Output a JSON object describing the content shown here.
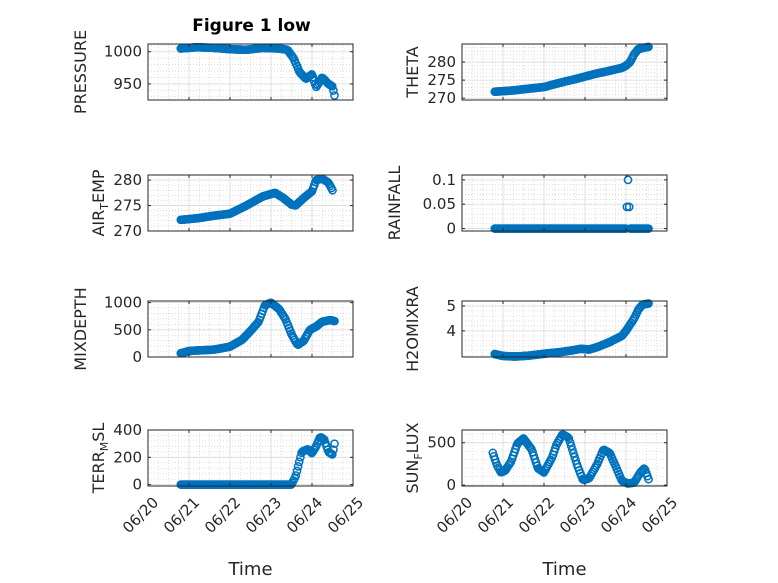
{
  "figure": {
    "title": "Figure 1 low",
    "xlabel": "Time",
    "xticks": [
      "06/20",
      "06/21",
      "06/22",
      "06/23",
      "06/24",
      "06/25"
    ],
    "marker_color": "#0072BD",
    "grid": true,
    "minor_grid": true
  },
  "chart_data": [
    {
      "type": "scatter",
      "ylabel_main": "PRESSURE",
      "ylabel_sub": "",
      "ylim": [
        925,
        1012
      ],
      "yticks": [
        950,
        1000
      ],
      "keyframes": [
        [
          0.8,
          1005
        ],
        [
          1.2,
          1007
        ],
        [
          1.6,
          1006
        ],
        [
          2.0,
          1004
        ],
        [
          2.4,
          1003
        ],
        [
          2.8,
          1006
        ],
        [
          3.2,
          1005
        ],
        [
          3.4,
          1003
        ],
        [
          3.55,
          990
        ],
        [
          3.7,
          968
        ],
        [
          3.85,
          958
        ],
        [
          4.0,
          965
        ],
        [
          4.1,
          945
        ],
        [
          4.25,
          960
        ],
        [
          4.4,
          950
        ],
        [
          4.5,
          946
        ],
        [
          4.55,
          932
        ]
      ]
    },
    {
      "type": "scatter",
      "ylabel_main": "THETA",
      "ylabel_sub": "",
      "ylim": [
        269.5,
        285
      ],
      "yticks": [
        270,
        275,
        280
      ],
      "keyframes": [
        [
          0.8,
          271.8
        ],
        [
          1.2,
          272.1
        ],
        [
          1.6,
          272.6
        ],
        [
          2.0,
          273.1
        ],
        [
          2.4,
          274.3
        ],
        [
          2.8,
          275.4
        ],
        [
          3.2,
          276.6
        ],
        [
          3.6,
          277.6
        ],
        [
          3.9,
          278.4
        ],
        [
          4.0,
          279.0
        ],
        [
          4.1,
          280.0
        ],
        [
          4.2,
          282.2
        ],
        [
          4.3,
          283.6
        ],
        [
          4.45,
          284.0
        ],
        [
          4.55,
          284.2
        ]
      ]
    },
    {
      "type": "scatter",
      "ylabel_main": "AIR",
      "ylabel_sub": "T",
      "ylabel_rest": "EMP",
      "ylim": [
        270,
        281
      ],
      "yticks": [
        270,
        275,
        280
      ],
      "keyframes": [
        [
          0.8,
          272.2
        ],
        [
          1.2,
          272.5
        ],
        [
          1.6,
          273.0
        ],
        [
          2.0,
          273.4
        ],
        [
          2.4,
          275.0
        ],
        [
          2.8,
          276.8
        ],
        [
          3.1,
          277.5
        ],
        [
          3.3,
          276.5
        ],
        [
          3.5,
          275.2
        ],
        [
          3.6,
          275.0
        ],
        [
          3.8,
          276.5
        ],
        [
          4.0,
          277.8
        ],
        [
          4.1,
          280.0
        ],
        [
          4.25,
          280.3
        ],
        [
          4.4,
          279.5
        ],
        [
          4.5,
          278.0
        ]
      ]
    },
    {
      "type": "scatter",
      "ylabel_main": "RAINFALL",
      "ylabel_sub": "",
      "ylim": [
        -0.005,
        0.11
      ],
      "yticks": [
        0,
        0.05,
        0.1
      ],
      "keyframes": [
        [
          0.8,
          0
        ],
        [
          4.0,
          0
        ],
        [
          4.05,
          0.1
        ],
        [
          4.1,
          0
        ],
        [
          4.55,
          0
        ]
      ]
    },
    {
      "type": "scatter",
      "ylabel_main": "MIXDEPTH",
      "ylabel_sub": "",
      "ylim": [
        0,
        1030
      ],
      "yticks": [
        0,
        500,
        1000
      ],
      "keyframes": [
        [
          0.8,
          70
        ],
        [
          1.0,
          110
        ],
        [
          1.2,
          120
        ],
        [
          1.6,
          135
        ],
        [
          2.0,
          190
        ],
        [
          2.3,
          320
        ],
        [
          2.5,
          480
        ],
        [
          2.7,
          650
        ],
        [
          2.85,
          950
        ],
        [
          3.0,
          1000
        ],
        [
          3.2,
          880
        ],
        [
          3.35,
          700
        ],
        [
          3.5,
          420
        ],
        [
          3.65,
          220
        ],
        [
          3.8,
          300
        ],
        [
          3.95,
          500
        ],
        [
          4.1,
          560
        ],
        [
          4.25,
          650
        ],
        [
          4.45,
          680
        ],
        [
          4.55,
          660
        ]
      ]
    },
    {
      "type": "scatter",
      "ylabel_main": "H2OMIXRA",
      "ylabel_sub": "",
      "ylim": [
        2.95,
        5.2
      ],
      "yticks": [
        4,
        5
      ],
      "keyframes": [
        [
          0.8,
          3.07
        ],
        [
          1.0,
          2.99
        ],
        [
          1.3,
          2.97
        ],
        [
          1.6,
          3.0
        ],
        [
          2.0,
          3.08
        ],
        [
          2.4,
          3.15
        ],
        [
          2.7,
          3.22
        ],
        [
          2.9,
          3.28
        ],
        [
          3.1,
          3.25
        ],
        [
          3.3,
          3.35
        ],
        [
          3.6,
          3.55
        ],
        [
          3.9,
          3.8
        ],
        [
          4.0,
          4.0
        ],
        [
          4.2,
          4.5
        ],
        [
          4.3,
          4.85
        ],
        [
          4.4,
          5.05
        ],
        [
          4.55,
          5.1
        ]
      ]
    },
    {
      "type": "scatter",
      "ylabel_main": "TERR",
      "ylabel_sub": "M",
      "ylabel_rest": "SL",
      "ylim": [
        -10,
        400
      ],
      "yticks": [
        0,
        200,
        400
      ],
      "keyframes": [
        [
          0.8,
          0
        ],
        [
          3.5,
          0
        ],
        [
          3.6,
          60
        ],
        [
          3.75,
          240
        ],
        [
          3.9,
          260
        ],
        [
          4.0,
          230
        ],
        [
          4.1,
          280
        ],
        [
          4.2,
          350
        ],
        [
          4.3,
          330
        ],
        [
          4.4,
          240
        ],
        [
          4.5,
          220
        ],
        [
          4.55,
          300
        ]
      ]
    },
    {
      "type": "scatter",
      "ylabel_main": "SUN",
      "ylabel_sub": "F",
      "ylabel_rest": "LUX",
      "ylim": [
        -10,
        650
      ],
      "yticks": [
        0,
        500
      ],
      "keyframes": [
        [
          0.75,
          380
        ],
        [
          0.85,
          240
        ],
        [
          0.95,
          150
        ],
        [
          1.05,
          170
        ],
        [
          1.2,
          280
        ],
        [
          1.35,
          490
        ],
        [
          1.5,
          550
        ],
        [
          1.7,
          420
        ],
        [
          1.85,
          200
        ],
        [
          2.0,
          150
        ],
        [
          2.2,
          330
        ],
        [
          2.3,
          470
        ],
        [
          2.45,
          600
        ],
        [
          2.6,
          560
        ],
        [
          2.8,
          250
        ],
        [
          2.95,
          60
        ],
        [
          3.1,
          80
        ],
        [
          3.3,
          250
        ],
        [
          3.45,
          420
        ],
        [
          3.6,
          380
        ],
        [
          3.75,
          220
        ],
        [
          3.9,
          50
        ],
        [
          4.05,
          20
        ],
        [
          4.2,
          30
        ],
        [
          4.35,
          150
        ],
        [
          4.45,
          200
        ],
        [
          4.55,
          70
        ]
      ]
    }
  ]
}
